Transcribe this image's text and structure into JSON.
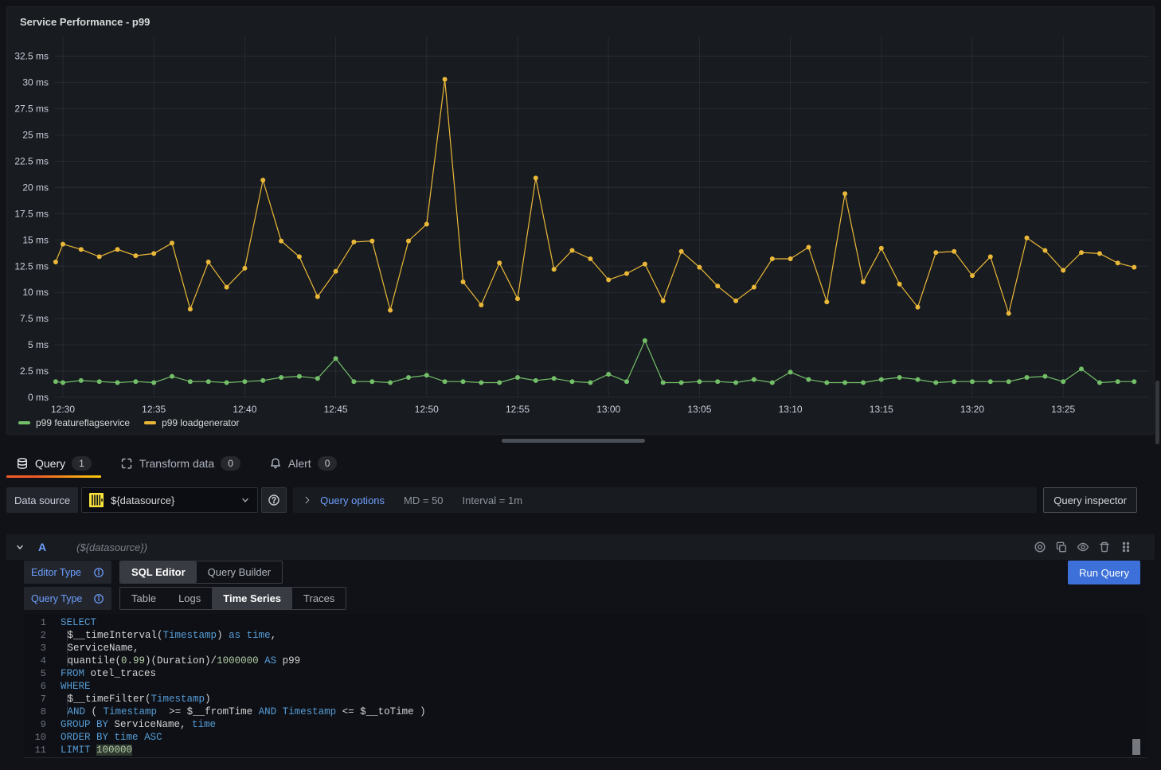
{
  "panel": {
    "title": "Service Performance - p99"
  },
  "chart_data": {
    "type": "line",
    "title": "Service Performance - p99",
    "unit": "ms",
    "grid": true,
    "legend_position": "bottom",
    "ylim": [
      0,
      34.3
    ],
    "x_range": [
      "12:30",
      "13:28"
    ],
    "y_ticks": [
      {
        "value": 0,
        "label": "0 ms"
      },
      {
        "value": 2.5,
        "label": "2.5 ms"
      },
      {
        "value": 5,
        "label": "5 ms"
      },
      {
        "value": 7.5,
        "label": "7.5 ms"
      },
      {
        "value": 10,
        "label": "10 ms"
      },
      {
        "value": 12.5,
        "label": "12.5 ms"
      },
      {
        "value": 15,
        "label": "15 ms"
      },
      {
        "value": 17.5,
        "label": "17.5 ms"
      },
      {
        "value": 20,
        "label": "20 ms"
      },
      {
        "value": 22.5,
        "label": "22.5 ms"
      },
      {
        "value": 25,
        "label": "25 ms"
      },
      {
        "value": 27.5,
        "label": "27.5 ms"
      },
      {
        "value": 30,
        "label": "30 ms"
      },
      {
        "value": 32.5,
        "label": "32.5 ms"
      }
    ],
    "x_ticks": [
      {
        "minute": 0,
        "label": "12:30"
      },
      {
        "minute": 5,
        "label": "12:35"
      },
      {
        "minute": 10,
        "label": "12:40"
      },
      {
        "minute": 15,
        "label": "12:45"
      },
      {
        "minute": 20,
        "label": "12:50"
      },
      {
        "minute": 25,
        "label": "12:55"
      },
      {
        "minute": 30,
        "label": "13:00"
      },
      {
        "minute": 35,
        "label": "13:05"
      },
      {
        "minute": 40,
        "label": "13:10"
      },
      {
        "minute": 45,
        "label": "13:15"
      },
      {
        "minute": 50,
        "label": "13:20"
      },
      {
        "minute": 55,
        "label": "13:25"
      }
    ],
    "x_minutes": [
      -0.4,
      0,
      1,
      2,
      3,
      4,
      5,
      6,
      7,
      8,
      9,
      10,
      11,
      12,
      13,
      14,
      15,
      16,
      17,
      18,
      19,
      20,
      21,
      22,
      23,
      24,
      25,
      26,
      27,
      28,
      29,
      30,
      31,
      32,
      33,
      34,
      35,
      36,
      37,
      38,
      39,
      40,
      41,
      42,
      43,
      44,
      45,
      46,
      47,
      48,
      49,
      50,
      51,
      52,
      53,
      54,
      55,
      56,
      57,
      58,
      58.9
    ],
    "series": [
      {
        "name": "p99 featureflagservice",
        "color": "#73BF69",
        "values": [
          1.5,
          1.4,
          1.6,
          1.5,
          1.4,
          1.5,
          1.4,
          2.0,
          1.5,
          1.5,
          1.4,
          1.5,
          1.6,
          1.9,
          2.0,
          1.8,
          3.7,
          1.5,
          1.5,
          1.4,
          1.9,
          2.1,
          1.5,
          1.5,
          1.4,
          1.4,
          1.9,
          1.6,
          1.8,
          1.5,
          1.4,
          2.2,
          1.5,
          5.4,
          1.4,
          1.4,
          1.5,
          1.5,
          1.4,
          1.7,
          1.4,
          2.4,
          1.7,
          1.4,
          1.4,
          1.4,
          1.7,
          1.9,
          1.7,
          1.4,
          1.5,
          1.5,
          1.5,
          1.5,
          1.9,
          2.0,
          1.5,
          2.7,
          1.4,
          1.5,
          1.5
        ]
      },
      {
        "name": "p99 loadgenerator",
        "color": "#EAB839",
        "values": [
          12.9,
          14.6,
          14.1,
          13.4,
          14.1,
          13.5,
          13.7,
          14.7,
          8.4,
          12.9,
          10.5,
          12.3,
          20.7,
          14.9,
          13.4,
          9.6,
          12.0,
          14.8,
          14.9,
          8.3,
          14.9,
          16.5,
          30.3,
          11.0,
          8.8,
          12.8,
          9.4,
          20.9,
          12.2,
          14.0,
          13.2,
          11.2,
          11.8,
          12.7,
          9.2,
          13.9,
          12.4,
          10.6,
          9.2,
          10.5,
          13.2,
          13.2,
          14.3,
          9.1,
          19.4,
          11.0,
          14.2,
          10.8,
          8.6,
          13.8,
          13.9,
          11.6,
          13.4,
          8.0,
          15.2,
          14.0,
          12.1,
          13.8,
          13.7,
          12.8,
          12.4
        ]
      }
    ]
  },
  "tabs": [
    {
      "label": "Query",
      "count": "1",
      "active": true
    },
    {
      "label": "Transform data",
      "count": "0",
      "active": false
    },
    {
      "label": "Alert",
      "count": "0",
      "active": false
    }
  ],
  "toolbar": {
    "datasource_label": "Data source",
    "datasource_value": "${datasource}",
    "query_options_label": "Query options",
    "query_options_md": "MD = 50",
    "query_options_interval": "Interval = 1m",
    "query_inspector_label": "Query inspector"
  },
  "query_row": {
    "ref_id": "A",
    "datasource_hint": "(${datasource})"
  },
  "controls": {
    "editor_type_label": "Editor Type",
    "editor_type_options": [
      "SQL Editor",
      "Query Builder"
    ],
    "editor_type_selected": "SQL Editor",
    "query_type_label": "Query Type",
    "query_type_options": [
      "Table",
      "Logs",
      "Time Series",
      "Traces"
    ],
    "query_type_selected": "Time Series",
    "run_query_label": "Run Query"
  },
  "sql_editor": {
    "lines": [
      {
        "indent": 0,
        "tokens": [
          [
            "k",
            "SELECT"
          ]
        ]
      },
      {
        "indent": 1,
        "tokens": [
          [
            "p",
            "$__timeInterval("
          ],
          [
            "k",
            "Timestamp"
          ],
          [
            "p",
            ") "
          ],
          [
            "k",
            "as"
          ],
          [
            "p",
            " "
          ],
          [
            "k",
            "time"
          ],
          [
            "p",
            ","
          ]
        ]
      },
      {
        "indent": 1,
        "tokens": [
          [
            "p",
            "ServiceName,"
          ]
        ]
      },
      {
        "indent": 1,
        "tokens": [
          [
            "p",
            "quantile("
          ],
          [
            "n",
            "0.99"
          ],
          [
            "p",
            ")(Duration)/"
          ],
          [
            "n",
            "1000000"
          ],
          [
            "p",
            " "
          ],
          [
            "k",
            "AS"
          ],
          [
            "p",
            " p99"
          ]
        ]
      },
      {
        "indent": 0,
        "tokens": [
          [
            "k",
            "FROM"
          ],
          [
            "p",
            " otel_traces"
          ]
        ]
      },
      {
        "indent": 0,
        "tokens": [
          [
            "k",
            "WHERE"
          ]
        ]
      },
      {
        "indent": 1,
        "tokens": [
          [
            "p",
            "$__timeFilter("
          ],
          [
            "k",
            "Timestamp"
          ],
          [
            "p",
            ")"
          ]
        ]
      },
      {
        "indent": 1,
        "tokens": [
          [
            "k",
            "AND"
          ],
          [
            "p",
            " ( "
          ],
          [
            "k",
            "Timestamp"
          ],
          [
            "p",
            "  >= $__fromTime "
          ],
          [
            "k",
            "AND"
          ],
          [
            "p",
            " "
          ],
          [
            "k",
            "Timestamp"
          ],
          [
            "p",
            " <= $__toTime )"
          ]
        ]
      },
      {
        "indent": 0,
        "tokens": [
          [
            "k",
            "GROUP BY"
          ],
          [
            "p",
            " ServiceName, "
          ],
          [
            "k",
            "time"
          ]
        ]
      },
      {
        "indent": 0,
        "tokens": [
          [
            "k",
            "ORDER BY"
          ],
          [
            "p",
            " "
          ],
          [
            "k",
            "time"
          ],
          [
            "p",
            " "
          ],
          [
            "k",
            "ASC"
          ]
        ]
      },
      {
        "indent": 0,
        "tokens": [
          [
            "k",
            "LIMIT"
          ],
          [
            "p",
            " "
          ],
          [
            "nh",
            "100000"
          ]
        ]
      }
    ]
  }
}
